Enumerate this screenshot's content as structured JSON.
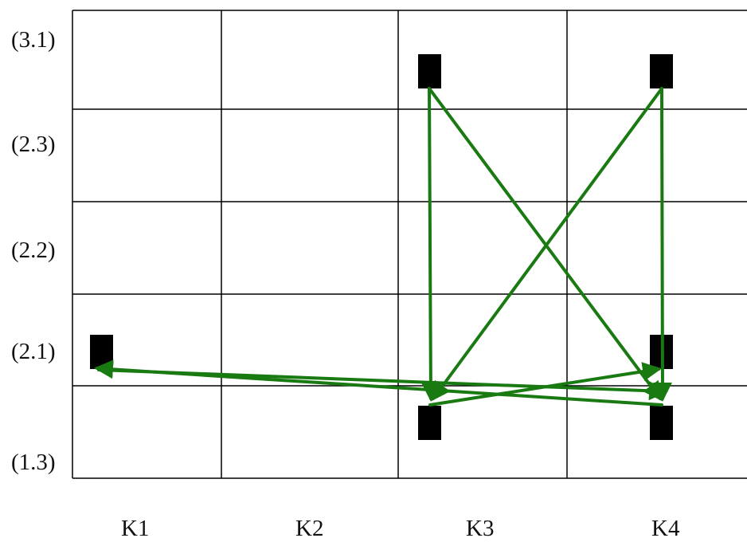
{
  "row_labels": [
    "(3.1)",
    "(2.3)",
    "(2.2)",
    "(2.1)",
    "(1.3)"
  ],
  "column_labels": [
    "K1",
    "K2",
    "K3",
    "K4"
  ],
  "colors": {
    "grid": "#000000",
    "node": "#000000",
    "arrow": "#1a7a12",
    "background": "#ffffff"
  },
  "nodes": [
    {
      "id": "K1-2.1",
      "column": "K1",
      "row": "(2.1)"
    },
    {
      "id": "K3-3.1",
      "column": "K3",
      "row": "(3.1)"
    },
    {
      "id": "K3-1.3",
      "column": "K3",
      "row": "(1.3)"
    },
    {
      "id": "K4-3.1",
      "column": "K4",
      "row": "(3.1)"
    },
    {
      "id": "K4-2.1",
      "column": "K4",
      "row": "(2.1)"
    },
    {
      "id": "K4-1.3",
      "column": "K4",
      "row": "(1.3)"
    }
  ],
  "arrows": [
    {
      "from": "K3-3.1",
      "to": "K3-1.3"
    },
    {
      "from": "K3-3.1",
      "to": "K4-1.3"
    },
    {
      "from": "K4-3.1",
      "to": "K3-1.3"
    },
    {
      "from": "K4-3.1",
      "to": "K4-1.3"
    },
    {
      "from": "K3-1.3",
      "to": "K4-2.1"
    },
    {
      "from": "K4-1.3",
      "to": "K1-2.1"
    },
    {
      "from": "K1-2.1",
      "to": "K4-1.3"
    }
  ]
}
